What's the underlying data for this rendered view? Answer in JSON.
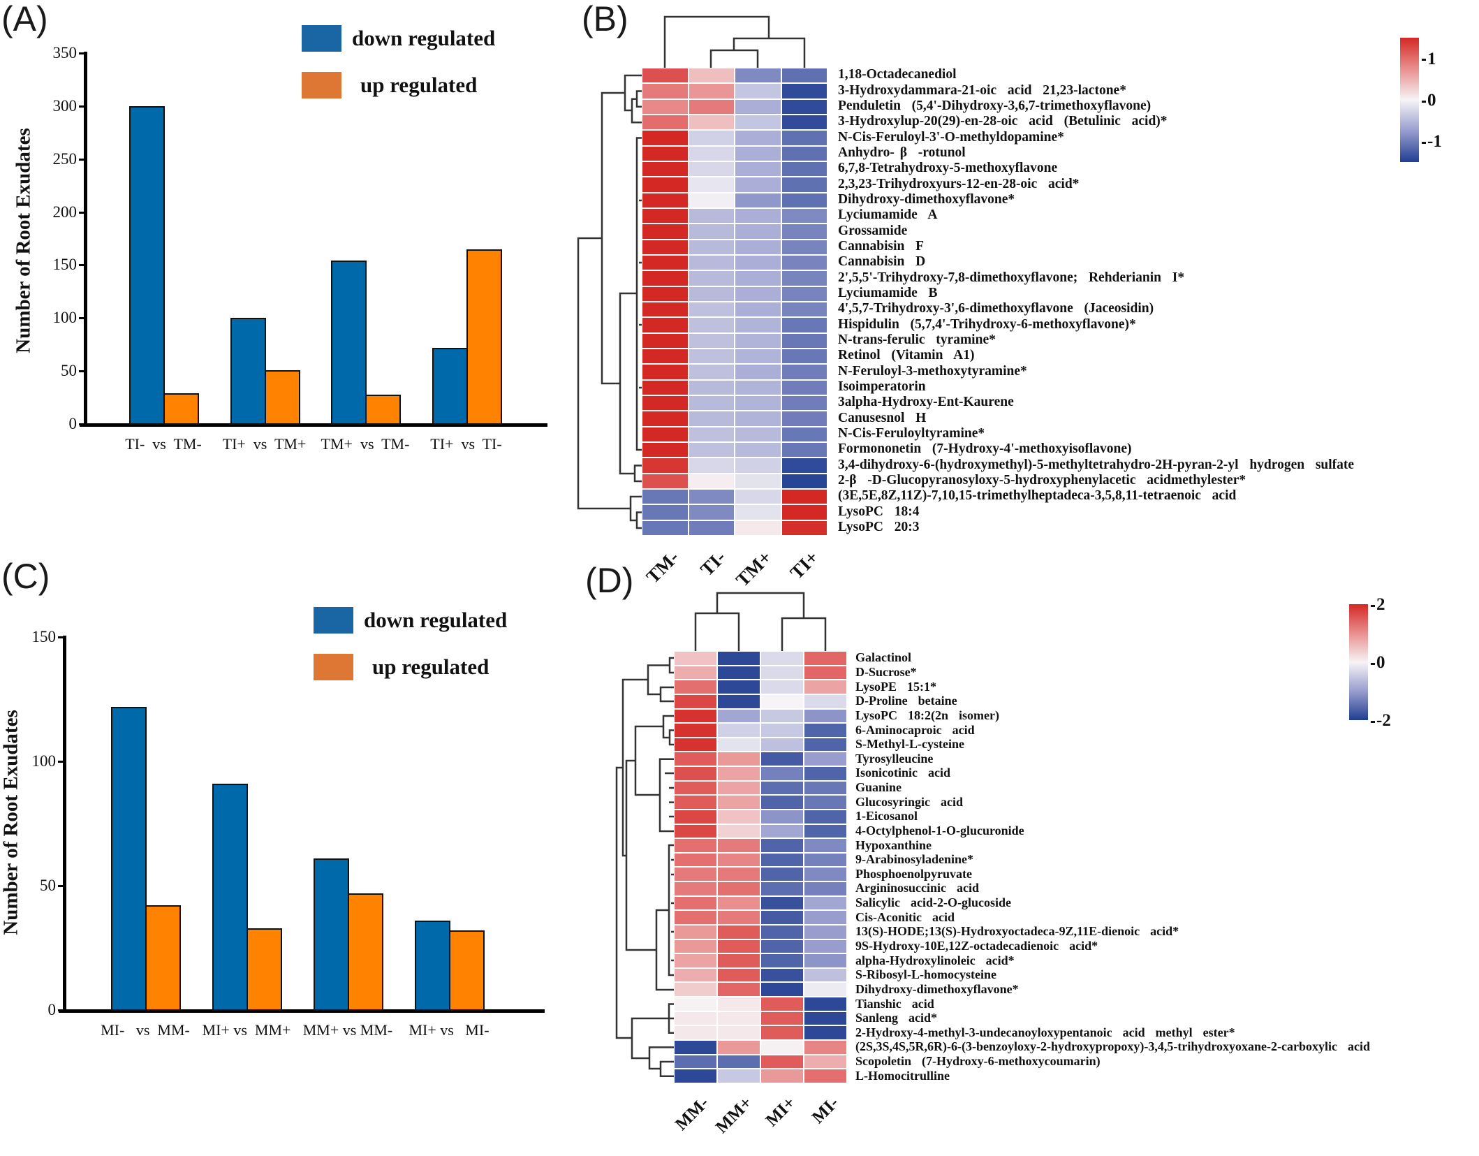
{
  "panels": {
    "a": "(A)",
    "b": "(B)",
    "c": "(C)",
    "d": "(D)"
  },
  "colors": {
    "down": "#0069aa",
    "up": "#ff8200",
    "legend_down": "#1a65a3",
    "legend_up": "#dd7733"
  },
  "chart_data": [
    {
      "type": "bar",
      "panel": "A",
      "title": "",
      "xlabel": "",
      "ylabel": "Number of Root Exudates",
      "categories": [
        "TI-  vs  TM-",
        "TI+  vs  TM+",
        "TM+  vs  TM-",
        "TI+  vs  TI-"
      ],
      "series": [
        {
          "name": "down regulated",
          "values": [
            300,
            100,
            154,
            72
          ]
        },
        {
          "name": "up regulated",
          "values": [
            29,
            51,
            28,
            165
          ]
        }
      ],
      "ylim": [
        0,
        350
      ],
      "yticks": [
        "0",
        "50",
        "100",
        "150",
        "200",
        "250",
        "300",
        "350"
      ],
      "legend_position": "top-right",
      "grid": false
    },
    {
      "type": "heatmap",
      "panel": "B",
      "columns": [
        "TM-",
        "TI-",
        "TM+",
        "TI+"
      ],
      "color_range": [
        -1.5,
        1.5
      ],
      "colorbar_ticks": [
        "1",
        "0",
        "-1"
      ],
      "rows": [
        {
          "label": "1,18-Octadecanediol",
          "values": [
            1.2,
            0.4,
            -0.9,
            -1.1
          ]
        },
        {
          "label": "3-Hydroxydammara-21-oic  acid  21,23-lactone*",
          "values": [
            0.9,
            0.7,
            -0.4,
            -1.4
          ]
        },
        {
          "label": "Penduletin  (5,4'-Dihydroxy-3,6,7-trimethoxyflavone)",
          "values": [
            0.8,
            0.9,
            -0.6,
            -1.4
          ]
        },
        {
          "label": "3-Hydroxylup-20(29)-en-28-oic  acid  (Betulinic  acid)*",
          "values": [
            1.0,
            0.4,
            -0.4,
            -1.4
          ]
        },
        {
          "label": "N-Cis-Feruloyl-3'-O-methyldopamine*",
          "values": [
            1.5,
            -0.3,
            -0.6,
            -1.1
          ]
        },
        {
          "label": "Anhydro- β  -rotunol",
          "values": [
            1.5,
            -0.25,
            -0.6,
            -1.1
          ]
        },
        {
          "label": "6,7,8-Tetrahydroxy-5-methoxyflavone",
          "values": [
            1.5,
            -0.25,
            -0.6,
            -1.1
          ]
        },
        {
          "label": "2,3,23-Trihydroxyurs-12-en-28-oic  acid*",
          "values": [
            1.5,
            -0.12,
            -0.6,
            -1.1
          ]
        },
        {
          "label": "Dihydroxy-dimethoxyflavone*",
          "values": [
            1.5,
            -0.04,
            -0.8,
            -1.1
          ]
        },
        {
          "label": "Lyciumamide  A",
          "values": [
            1.5,
            -0.5,
            -0.6,
            -0.9
          ]
        },
        {
          "label": "Grossamide",
          "values": [
            1.5,
            -0.5,
            -0.6,
            -0.95
          ]
        },
        {
          "label": "Cannabisin  F",
          "values": [
            1.5,
            -0.5,
            -0.6,
            -0.95
          ]
        },
        {
          "label": "Cannabisin  D",
          "values": [
            1.5,
            -0.5,
            -0.6,
            -0.95
          ]
        },
        {
          "label": "2',5,5'-Trihydroxy-7,8-dimethoxyflavone;  Rehderianin  I*",
          "values": [
            1.5,
            -0.5,
            -0.6,
            -0.95
          ]
        },
        {
          "label": "Lyciumamide  B",
          "values": [
            1.5,
            -0.5,
            -0.6,
            -0.95
          ]
        },
        {
          "label": "4',5,7-Trihydroxy-3',6-dimethoxyflavone  (Jaceosidin)",
          "values": [
            1.5,
            -0.45,
            -0.6,
            -0.95
          ]
        },
        {
          "label": "Hispidulin  (5,7,4'-Trihydroxy-6-methoxyflavone)*",
          "values": [
            1.5,
            -0.45,
            -0.55,
            -1.05
          ]
        },
        {
          "label": "N-trans-ferulic  tyramine*",
          "values": [
            1.5,
            -0.45,
            -0.55,
            -1.05
          ]
        },
        {
          "label": "Retinol  (Vitamin  A1)",
          "values": [
            1.5,
            -0.45,
            -0.55,
            -1.05
          ]
        },
        {
          "label": "N-Feruloyl-3-methoxytyramine*",
          "values": [
            1.5,
            -0.45,
            -0.6,
            -1.0
          ]
        },
        {
          "label": "Isoimperatorin",
          "values": [
            1.5,
            -0.5,
            -0.55,
            -1.0
          ]
        },
        {
          "label": "3alpha-Hydroxy-Ent-Kaurene",
          "values": [
            1.5,
            -0.5,
            -0.55,
            -1.0
          ]
        },
        {
          "label": "Canusesnol  H",
          "values": [
            1.5,
            -0.5,
            -0.55,
            -1.0
          ]
        },
        {
          "label": "N-Cis-Feruloyltyramine*",
          "values": [
            1.5,
            -0.45,
            -0.5,
            -1.05
          ]
        },
        {
          "label": "Formononetin  (7-Hydroxy-4'-methoxyisoflavone)",
          "values": [
            1.5,
            -0.45,
            -0.5,
            -1.05
          ]
        },
        {
          "label": "3,4-dihydroxy-6-(hydroxymethyl)-5-methyltetrahydro-2H-pyran-2-yl  hydrogen  sulfate",
          "values": [
            1.4,
            -0.25,
            -0.3,
            -1.4
          ]
        },
        {
          "label": "2-β  -D-Glucopyranosyloxy-5-hydroxyphenylacetic  acidmethylester*",
          "values": [
            1.2,
            0.05,
            -0.15,
            -1.45
          ]
        },
        {
          "label": "(3E,5E,8Z,11Z)-7,10,15-trimethylheptadeca-3,5,8,11-tetraenoic  acid",
          "values": [
            -1.05,
            -0.9,
            -0.25,
            1.5
          ]
        },
        {
          "label": "LysoPC  18:4",
          "values": [
            -1.05,
            -0.9,
            -0.15,
            1.5
          ]
        },
        {
          "label": "LysoPC  20:3",
          "values": [
            -1.05,
            -1.0,
            0.08,
            1.45
          ]
        }
      ]
    },
    {
      "type": "bar",
      "panel": "C",
      "title": "",
      "xlabel": "",
      "ylabel": "Number of Root Exudates",
      "categories": [
        "MI-   vs  MM-",
        "MI+ vs  MM+",
        "MM+ vs MM-",
        "MI+ vs   MI-"
      ],
      "series": [
        {
          "name": "down regulated",
          "values": [
            122,
            91,
            61,
            36
          ]
        },
        {
          "name": "up regulated",
          "values": [
            42,
            33,
            47,
            32
          ]
        }
      ],
      "ylim": [
        0,
        150
      ],
      "yticks": [
        "0",
        "50",
        "100",
        "150"
      ],
      "legend_position": "top-right",
      "grid": false
    },
    {
      "type": "heatmap",
      "panel": "D",
      "columns": [
        "MM-",
        "MM+",
        "MI+",
        "MI-"
      ],
      "color_range": [
        -2,
        2
      ],
      "colorbar_ticks": [
        "2",
        "0",
        "-2"
      ],
      "rows": [
        {
          "label": "Galactinol",
          "values": [
            0.5,
            -1.9,
            -0.3,
            1.4
          ]
        },
        {
          "label": "D-Sucrose*",
          "values": [
            0.7,
            -1.9,
            -0.3,
            1.4
          ]
        },
        {
          "label": "LysoPE  15:1*",
          "values": [
            1.3,
            -1.9,
            -0.3,
            0.8
          ]
        },
        {
          "label": "D-Proline  betaine",
          "values": [
            1.7,
            -1.9,
            0.0,
            -0.3
          ]
        },
        {
          "label": "LysoPC  18:2(2n  isomer)",
          "values": [
            1.9,
            -0.9,
            -0.5,
            -1.1
          ]
        },
        {
          "label": "6-Aminocaproic  acid",
          "values": [
            1.9,
            -0.4,
            -0.5,
            -1.6
          ]
        },
        {
          "label": "S-Methyl-L-cysteine",
          "values": [
            1.9,
            -0.2,
            -0.6,
            -1.6
          ]
        },
        {
          "label": "Tyrosylleucine",
          "values": [
            1.5,
            0.9,
            -1.7,
            -1.0
          ]
        },
        {
          "label": "Isonicotinic  acid",
          "values": [
            1.6,
            0.8,
            -1.3,
            -1.6
          ]
        },
        {
          "label": "Guanine",
          "values": [
            1.5,
            0.8,
            -1.5,
            -1.4
          ]
        },
        {
          "label": "Glucosyringic  acid",
          "values": [
            1.5,
            0.8,
            -1.6,
            -1.4
          ]
        },
        {
          "label": "1-Eicosanol",
          "values": [
            1.7,
            0.5,
            -1.1,
            -1.6
          ]
        },
        {
          "label": "4-Octylphenol-1-O-glucuronide",
          "values": [
            1.7,
            0.35,
            -0.9,
            -1.6
          ]
        },
        {
          "label": "Hypoxanthine",
          "values": [
            1.3,
            1.2,
            -1.6,
            -1.2
          ]
        },
        {
          "label": "9-Arabinosyladenine*",
          "values": [
            1.3,
            1.1,
            -1.6,
            -1.3
          ]
        },
        {
          "label": "Phosphoenolpyruvate",
          "values": [
            1.2,
            1.2,
            -1.6,
            -1.2
          ]
        },
        {
          "label": "Argininosuccinic  acid",
          "values": [
            1.2,
            1.3,
            -1.5,
            -1.3
          ]
        },
        {
          "label": "Salicylic  acid-2-O-glucoside",
          "values": [
            1.3,
            1.0,
            -1.8,
            -0.9
          ]
        },
        {
          "label": "Cis-Aconitic  acid",
          "values": [
            1.3,
            1.2,
            -1.7,
            -1.0
          ]
        },
        {
          "label": "13(S)-HODE;13(S)-Hydroxyoctadeca-9Z,11E-dienoic  acid*",
          "values": [
            0.9,
            1.5,
            -1.6,
            -1.0
          ]
        },
        {
          "label": "9S-Hydroxy-10E,12Z-octadecadienoic  acid*",
          "values": [
            0.9,
            1.5,
            -1.6,
            -1.0
          ]
        },
        {
          "label": "alpha-Hydroxylinoleic  acid*",
          "values": [
            0.8,
            1.5,
            -1.6,
            -1.1
          ]
        },
        {
          "label": "S-Ribosyl-L-homocysteine",
          "values": [
            0.7,
            1.5,
            -1.8,
            -0.6
          ]
        },
        {
          "label": "Dihydroxy-dimethoxyflavone*",
          "values": [
            0.4,
            1.4,
            -1.9,
            -0.1
          ]
        },
        {
          "label": "Tianshic  acid",
          "values": [
            0.03,
            0.12,
            1.5,
            -1.9
          ]
        },
        {
          "label": "Sanleng  acid*",
          "values": [
            0.12,
            0.12,
            1.5,
            -1.9
          ]
        },
        {
          "label": "2-Hydroxy-4-methyl-3-undecanoyloxypentanoic  acid  methyl  ester*",
          "values": [
            0.12,
            0.12,
            1.5,
            -1.9
          ]
        },
        {
          "label": "(2S,3S,4S,5R,6R)-6-(3-benzoyloxy-2-hydroxypropoxy)-3,4,5-trihydroxyoxane-2-carboxylic  acid",
          "values": [
            -1.9,
            0.9,
            0.04,
            1.1
          ]
        },
        {
          "label": "Scopoletin  (7-Hydroxy-6-methoxycoumarin)",
          "values": [
            -1.5,
            -1.5,
            1.5,
            0.7
          ]
        },
        {
          "label": "L-Homocitrulline",
          "values": [
            -1.9,
            -0.5,
            0.9,
            1.3
          ]
        }
      ]
    }
  ]
}
